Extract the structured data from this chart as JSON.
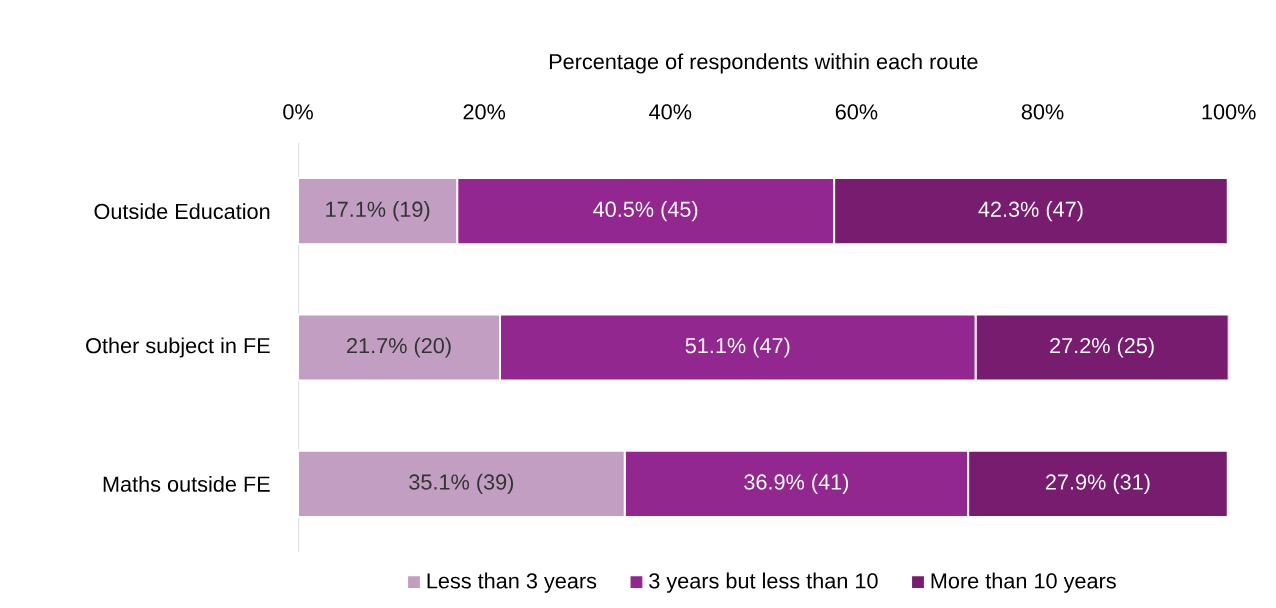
{
  "chart_data": {
    "type": "bar",
    "orientation": "horizontal",
    "stacked": true,
    "xlabel": "Percentage of respondents within each route",
    "categories": [
      "Outside Education",
      "Other subject in FE",
      "Maths outside FE"
    ],
    "xlim": [
      0,
      100
    ],
    "xticks": [
      {
        "value": 0,
        "label": "0%"
      },
      {
        "value": 20,
        "label": "20%"
      },
      {
        "value": 40,
        "label": "40%"
      },
      {
        "value": 60,
        "label": "60%"
      },
      {
        "value": 80,
        "label": "80%"
      },
      {
        "value": 100,
        "label": "100%"
      }
    ],
    "legend": "bottom",
    "series": [
      {
        "name": "Less than 3 years",
        "color": "#c29fc2",
        "values": [
          17.1,
          21.7,
          35.1
        ],
        "value_labels": [
          "17.1% (19)",
          "21.7% (20)",
          "35.1% (39)"
        ]
      },
      {
        "name": "3 years but less than 10",
        "color": "#92278f",
        "values": [
          40.5,
          51.1,
          36.9
        ],
        "value_labels": [
          "40.5% (45)",
          "51.1% (47)",
          "36.9% (41)"
        ]
      },
      {
        "name": "More than 10 years",
        "color": "#771c6e",
        "values": [
          42.3,
          27.2,
          27.9
        ],
        "value_labels": [
          "42.3% (47)",
          "27.2% (25)",
          "27.9% (31)"
        ]
      }
    ]
  }
}
